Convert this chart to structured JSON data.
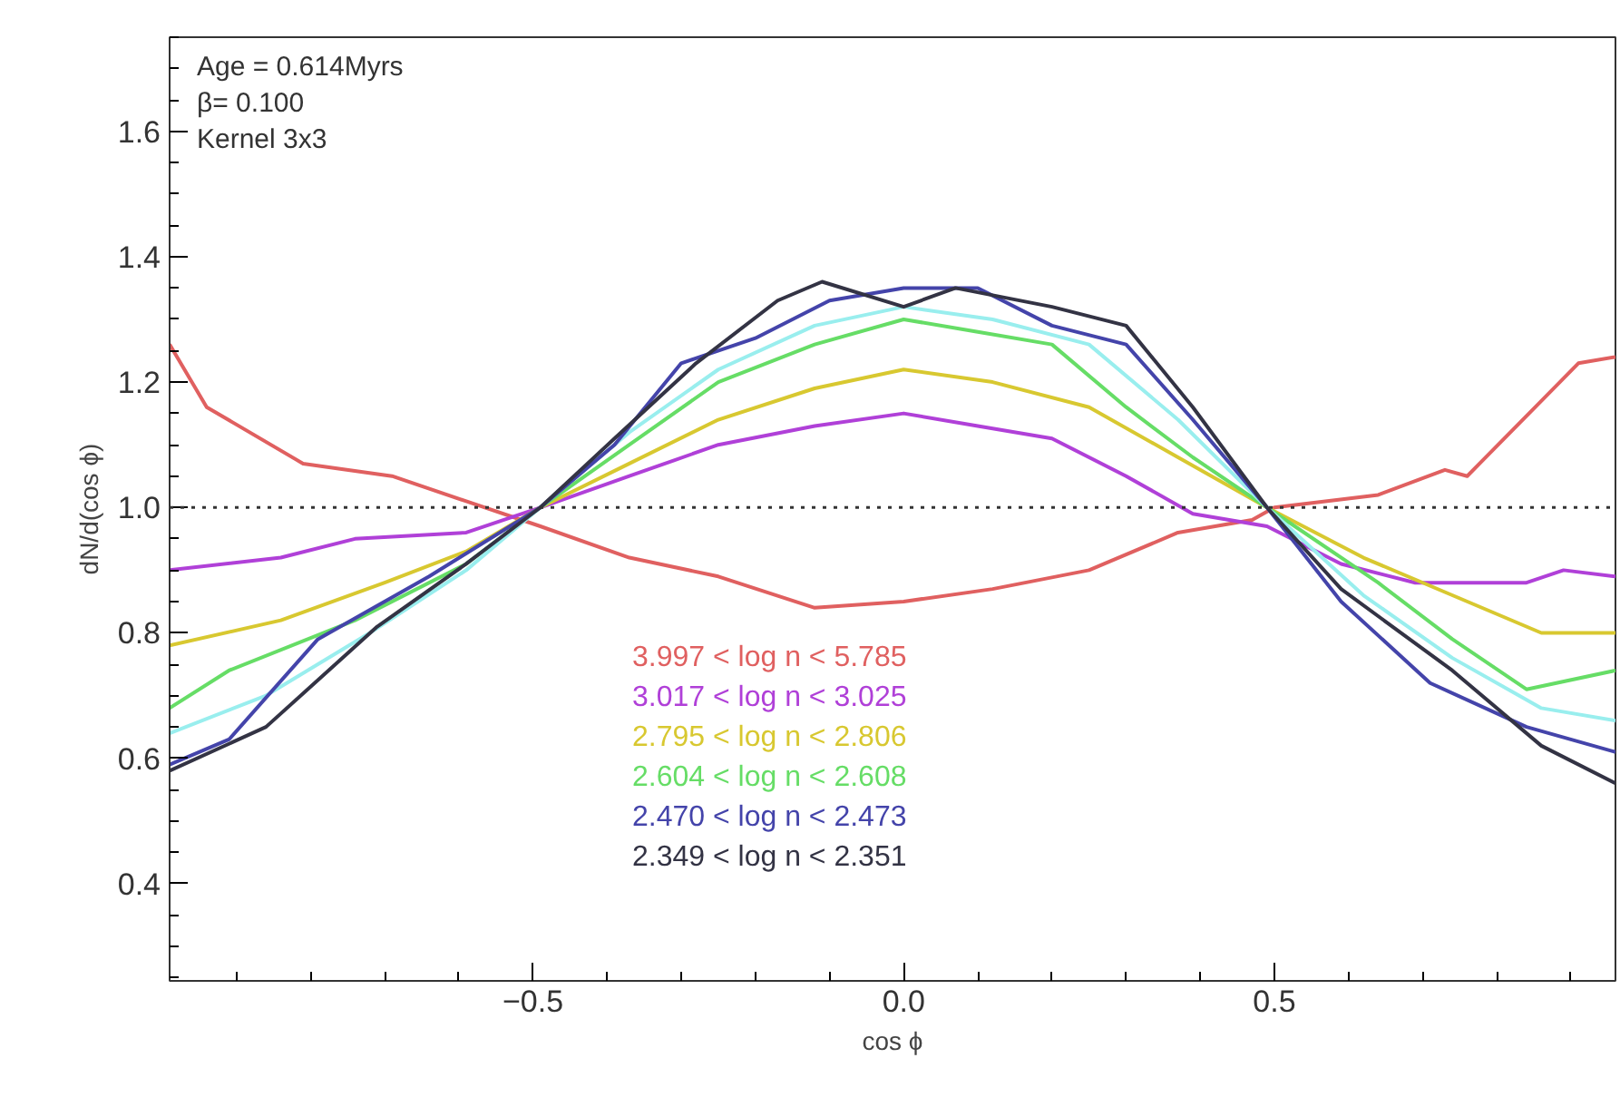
{
  "chart_data": {
    "type": "line",
    "xlabel": "cos ϕ",
    "ylabel": "dN/d(cos ϕ)",
    "xlim": [
      -0.99,
      0.96
    ],
    "ylim": [
      0.245,
      1.75
    ],
    "xticks": [
      -0.5,
      {
        "value": 0,
        "label": "0.0"
      },
      0.5
    ],
    "yticks": [
      0.4,
      0.6,
      0.8,
      {
        "value": 1,
        "label": "1.0"
      },
      1.2,
      1.4,
      1.6
    ],
    "grid": false,
    "legend": "bottom",
    "line_style": "solid",
    "marker": "none",
    "annotations": [
      "Age = 0.614Myrs",
      "β= 0.100",
      "Kernel 3x3"
    ],
    "ref_lines": [
      {
        "axis": "y",
        "value": 1.0,
        "line_style": "dotted",
        "color": "#333333"
      }
    ],
    "series": [
      {
        "name": "3.997 < log n < 5.785",
        "color": "#e06060",
        "x": [
          -0.99,
          -0.94,
          -0.81,
          -0.69,
          -0.59,
          -0.49,
          -0.37,
          -0.25,
          -0.12,
          0,
          0.12,
          0.25,
          0.37,
          0.47,
          0.5,
          0.64,
          0.73,
          0.76,
          0.86,
          0.91,
          0.96
        ],
        "values": [
          1.26,
          1.16,
          1.07,
          1.05,
          1.01,
          0.97,
          0.92,
          0.89,
          0.84,
          0.85,
          0.87,
          0.9,
          0.96,
          0.98,
          1.0,
          1.02,
          1.06,
          1.05,
          1.17,
          1.23,
          1.24
        ]
      },
      {
        "name": "3.017 < log n < 3.025",
        "color": "#b040d8",
        "x": [
          -0.99,
          -0.84,
          -0.74,
          -0.59,
          -0.49,
          -0.37,
          -0.25,
          -0.12,
          0,
          0.1,
          0.2,
          0.3,
          0.39,
          0.49,
          0.59,
          0.69,
          0.84,
          0.89,
          0.96
        ],
        "values": [
          0.9,
          0.92,
          0.95,
          0.96,
          1.0,
          1.05,
          1.1,
          1.13,
          1.15,
          1.13,
          1.11,
          1.05,
          0.99,
          0.97,
          0.91,
          0.88,
          0.88,
          0.9,
          0.89
        ]
      },
      {
        "name": "2.795 < log n < 2.806",
        "color": "#d8c830",
        "x": [
          -0.99,
          -0.84,
          -0.7,
          -0.59,
          -0.49,
          -0.37,
          -0.25,
          -0.12,
          0,
          0.12,
          0.25,
          0.37,
          0.49,
          0.62,
          0.74,
          0.86,
          0.96
        ],
        "values": [
          0.78,
          0.82,
          0.88,
          0.93,
          1.0,
          1.07,
          1.14,
          1.19,
          1.22,
          1.2,
          1.16,
          1.08,
          1.0,
          0.92,
          0.86,
          0.8,
          0.8
        ]
      },
      {
        "name": "2.604 < log n < 2.608",
        "color": "#66dd66",
        "x": [
          -0.99,
          -0.91,
          -0.74,
          -0.59,
          -0.49,
          -0.37,
          -0.25,
          -0.12,
          0,
          0.1,
          0.2,
          0.3,
          0.39,
          0.49,
          0.64,
          0.74,
          0.84,
          0.96
        ],
        "values": [
          0.68,
          0.74,
          0.82,
          0.91,
          1.0,
          1.1,
          1.2,
          1.26,
          1.3,
          1.28,
          1.26,
          1.16,
          1.08,
          1.0,
          0.88,
          0.79,
          0.71,
          0.74
        ]
      },
      {
        "name": null,
        "color": "#99eeee",
        "x": [
          -0.99,
          -0.86,
          -0.72,
          -0.59,
          -0.49,
          -0.37,
          -0.25,
          -0.12,
          0,
          0.12,
          0.25,
          0.37,
          0.49,
          0.62,
          0.74,
          0.86,
          0.96
        ],
        "values": [
          0.64,
          0.7,
          0.8,
          0.9,
          1.0,
          1.12,
          1.22,
          1.29,
          1.32,
          1.3,
          1.26,
          1.14,
          1.0,
          0.86,
          0.76,
          0.68,
          0.66
        ]
      },
      {
        "name": "2.470 < log n < 2.473",
        "color": "#4444aa",
        "x": [
          -0.99,
          -0.91,
          -0.79,
          -0.64,
          -0.49,
          -0.39,
          -0.3,
          -0.2,
          -0.1,
          0,
          0.1,
          0.2,
          0.3,
          0.39,
          0.49,
          0.59,
          0.71,
          0.84,
          0.96
        ],
        "values": [
          0.59,
          0.63,
          0.79,
          0.89,
          1.0,
          1.1,
          1.23,
          1.27,
          1.33,
          1.35,
          1.35,
          1.29,
          1.26,
          1.14,
          1.0,
          0.85,
          0.72,
          0.65,
          0.61
        ]
      },
      {
        "name": "2.349 < log n < 2.351",
        "color": "#333344",
        "x": [
          -0.99,
          -0.86,
          -0.71,
          -0.59,
          -0.49,
          -0.39,
          -0.28,
          -0.17,
          -0.11,
          0,
          0.07,
          0.2,
          0.3,
          0.39,
          0.49,
          0.59,
          0.74,
          0.86,
          0.96
        ],
        "values": [
          0.58,
          0.65,
          0.81,
          0.91,
          1.0,
          1.11,
          1.23,
          1.33,
          1.36,
          1.32,
          1.35,
          1.32,
          1.29,
          1.16,
          1.0,
          0.87,
          0.74,
          0.62,
          0.56
        ]
      }
    ]
  }
}
